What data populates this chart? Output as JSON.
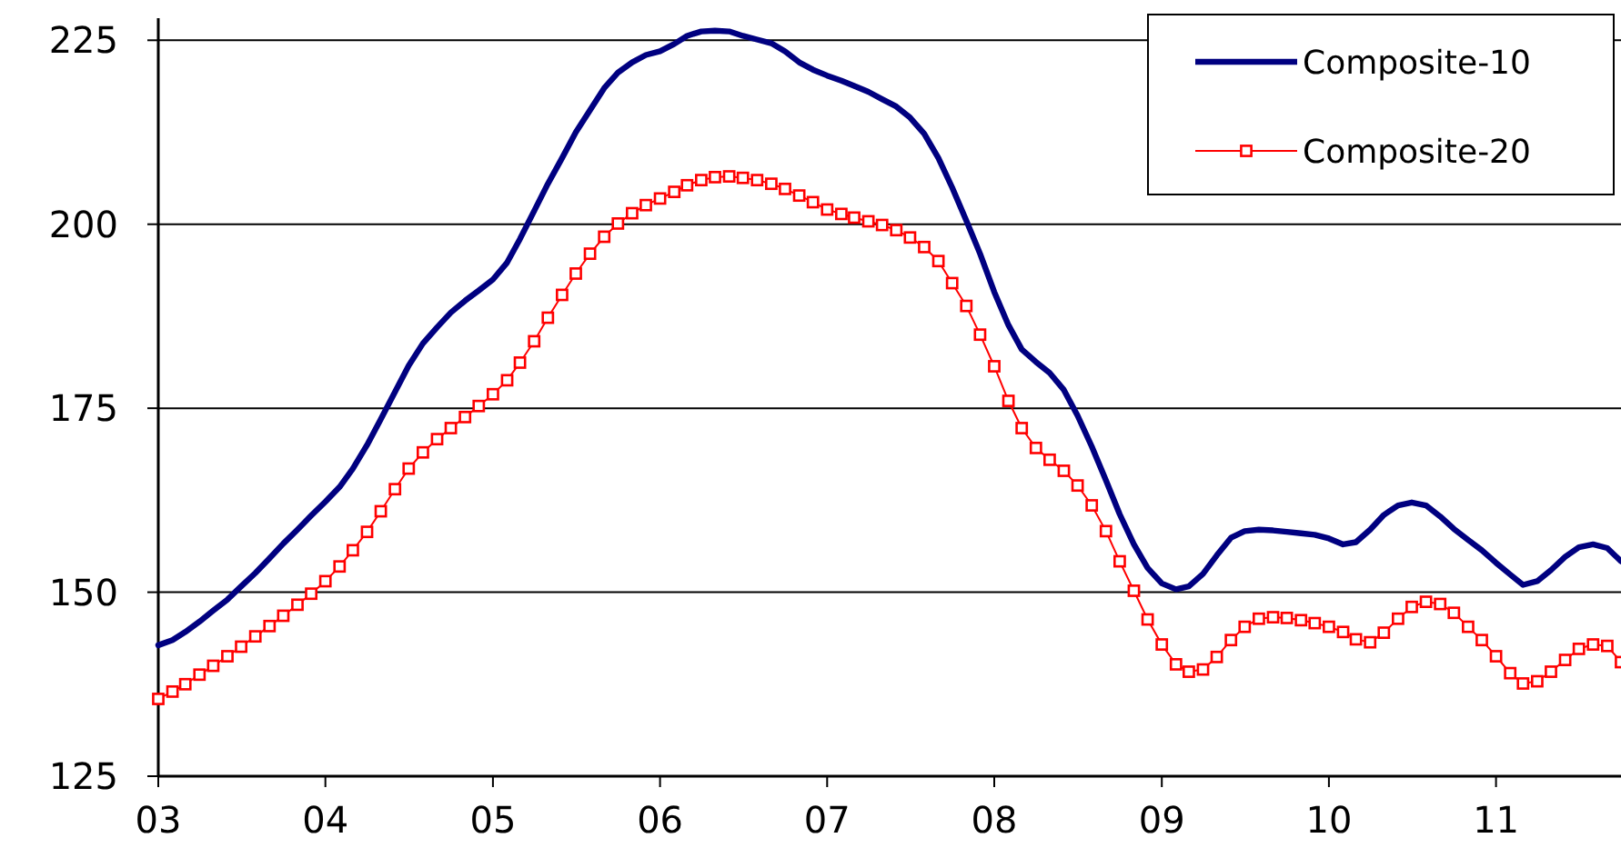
{
  "chart_data": {
    "type": "line",
    "xlim": [
      "2003-01",
      "2011-10"
    ],
    "ylim": [
      125,
      228
    ],
    "xticks": [
      {
        "value": "2003-01",
        "label": "03"
      },
      {
        "value": "2004-01",
        "label": "04"
      },
      {
        "value": "2005-01",
        "label": "05"
      },
      {
        "value": "2006-01",
        "label": "06"
      },
      {
        "value": "2007-01",
        "label": "07"
      },
      {
        "value": "2008-01",
        "label": "08"
      },
      {
        "value": "2009-01",
        "label": "09"
      },
      {
        "value": "2010-01",
        "label": "10"
      },
      {
        "value": "2011-01",
        "label": "11"
      }
    ],
    "yticks": [
      125,
      150,
      175,
      200,
      225
    ],
    "x": [
      "2003-01",
      "2003-02",
      "2003-03",
      "2003-04",
      "2003-05",
      "2003-06",
      "2003-07",
      "2003-08",
      "2003-09",
      "2003-10",
      "2003-11",
      "2003-12",
      "2004-01",
      "2004-02",
      "2004-03",
      "2004-04",
      "2004-05",
      "2004-06",
      "2004-07",
      "2004-08",
      "2004-09",
      "2004-10",
      "2004-11",
      "2004-12",
      "2005-01",
      "2005-02",
      "2005-03",
      "2005-04",
      "2005-05",
      "2005-06",
      "2005-07",
      "2005-08",
      "2005-09",
      "2005-10",
      "2005-11",
      "2005-12",
      "2006-01",
      "2006-02",
      "2006-03",
      "2006-04",
      "2006-05",
      "2006-06",
      "2006-07",
      "2006-08",
      "2006-09",
      "2006-10",
      "2006-11",
      "2006-12",
      "2007-01",
      "2007-02",
      "2007-03",
      "2007-04",
      "2007-05",
      "2007-06",
      "2007-07",
      "2007-08",
      "2007-09",
      "2007-10",
      "2007-11",
      "2007-12",
      "2008-01",
      "2008-02",
      "2008-03",
      "2008-04",
      "2008-05",
      "2008-06",
      "2008-07",
      "2008-08",
      "2008-09",
      "2008-10",
      "2008-11",
      "2008-12",
      "2009-01",
      "2009-02",
      "2009-03",
      "2009-04",
      "2009-05",
      "2009-06",
      "2009-07",
      "2009-08",
      "2009-09",
      "2009-10",
      "2009-11",
      "2009-12",
      "2010-01",
      "2010-02",
      "2010-03",
      "2010-04",
      "2010-05",
      "2010-06",
      "2010-07",
      "2010-08",
      "2010-09",
      "2010-10",
      "2010-11",
      "2010-12",
      "2011-01",
      "2011-02",
      "2011-03",
      "2011-04",
      "2011-05",
      "2011-06",
      "2011-07",
      "2011-08",
      "2011-09",
      "2011-10"
    ],
    "grid": "y",
    "legend": "top right",
    "series": [
      {
        "name": "Composite-10",
        "color": "#000080",
        "marker": "none",
        "values": [
          142.8,
          143.5,
          144.6,
          146,
          147.5,
          149,
          150.8,
          152.6,
          154.6,
          156.6,
          158.5,
          160.4,
          162.3,
          164.3,
          166.8,
          170,
          173.5,
          177.2,
          180.8,
          183.8,
          186,
          188,
          189.6,
          191,
          192.5,
          194.8,
          198,
          201.8,
          205.5,
          209,
          212.5,
          215.5,
          218.5,
          220.6,
          222,
          223,
          223.5,
          224.5,
          225.6,
          226.2,
          226.3,
          226.2,
          225.6,
          225.1,
          224.6,
          223.5,
          222,
          221,
          220.2,
          219.5,
          218.8,
          218,
          217,
          216,
          214.5,
          212.3,
          209,
          205,
          200.5,
          196,
          190.8,
          186.3,
          183,
          181.3,
          179.8,
          177.5,
          174,
          169.8,
          165.2,
          160.6,
          156.5,
          153.3,
          151.2,
          150.4,
          150.8,
          152.5,
          155,
          157.4,
          158.3,
          158.5,
          158.4,
          158.2,
          158,
          157.8,
          157.3,
          156.5,
          156.8,
          158.5,
          160.5,
          161.8,
          162.2,
          161.8,
          160.3,
          158.6,
          157.1,
          155.7,
          154,
          152.4,
          151,
          151.5,
          153,
          154.8,
          156.1,
          156.5,
          156,
          154.2
        ]
      },
      {
        "name": "Composite-20",
        "color": "#ff0000",
        "marker": "square",
        "values": [
          135.5,
          136.5,
          137.5,
          138.8,
          140,
          141.3,
          142.6,
          144,
          145.4,
          146.8,
          148.3,
          149.8,
          151.5,
          153.5,
          155.7,
          158.2,
          161,
          164,
          166.8,
          169,
          170.8,
          172.3,
          173.8,
          175.3,
          176.9,
          178.8,
          181.2,
          184.1,
          187.3,
          190.4,
          193.3,
          196,
          198.3,
          200.1,
          201.5,
          202.6,
          203.5,
          204.4,
          205.3,
          206,
          206.4,
          206.5,
          206.3,
          206,
          205.5,
          204.8,
          203.9,
          203,
          202,
          201.4,
          200.9,
          200.4,
          199.9,
          199.2,
          198.2,
          196.9,
          195,
          192,
          188.9,
          185,
          180.7,
          176,
          172.3,
          169.6,
          168,
          166.5,
          164.5,
          161.8,
          158.3,
          154.2,
          150.2,
          146.3,
          142.9,
          140.2,
          139.2,
          139.5,
          141.2,
          143.5,
          145.3,
          146.4,
          146.6,
          146.5,
          146.2,
          145.8,
          145.3,
          144.6,
          143.6,
          143.2,
          144.5,
          146.4,
          148,
          148.7,
          148.4,
          147.2,
          145.3,
          143.5,
          141.3,
          139,
          137.6,
          137.9,
          139.2,
          140.8,
          142.3,
          142.9,
          142.7,
          140.5
        ]
      }
    ]
  }
}
